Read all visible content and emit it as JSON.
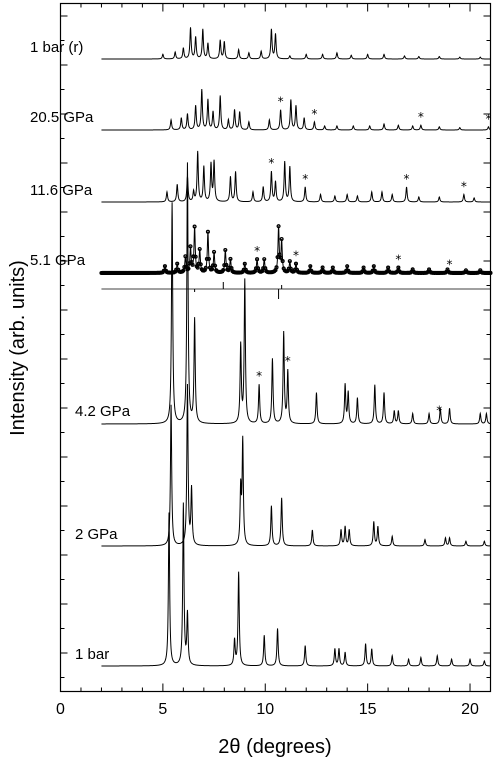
{
  "chart_data": {
    "type": "line",
    "xlabel": "2θ (degrees)",
    "ylabel": "Intensity (arb. units)",
    "xlim": [
      0,
      21
    ],
    "x_ticks": [
      "0",
      "5",
      "10",
      "15",
      "20"
    ],
    "x_minor_step": 1,
    "y_ticks_shown": false,
    "grid": false,
    "legend": "none",
    "pattern_x_range": [
      2,
      21
    ],
    "series": [
      {
        "name": "1 bar (r)",
        "peaks": [
          [
            5.0,
            0.15
          ],
          [
            5.6,
            0.22
          ],
          [
            6.0,
            0.35
          ],
          [
            6.35,
            1.0
          ],
          [
            6.6,
            0.7
          ],
          [
            6.95,
            0.95
          ],
          [
            7.2,
            0.5
          ],
          [
            7.8,
            0.6
          ],
          [
            8.0,
            0.55
          ],
          [
            8.7,
            0.3
          ],
          [
            9.2,
            0.2
          ],
          [
            9.8,
            0.25
          ],
          [
            10.3,
            0.95
          ],
          [
            10.5,
            0.8
          ],
          [
            11.2,
            0.1
          ],
          [
            12.0,
            0.15
          ],
          [
            12.8,
            0.15
          ],
          [
            13.5,
            0.2
          ],
          [
            14.2,
            0.12
          ],
          [
            15.0,
            0.15
          ],
          [
            15.8,
            0.15
          ],
          [
            16.8,
            0.1
          ],
          [
            17.5,
            0.08
          ],
          [
            18.5,
            0.08
          ],
          [
            19.5,
            0.06
          ],
          [
            20.5,
            0.06
          ]
        ]
      },
      {
        "name": "20.5 GPa",
        "peaks": [
          [
            5.4,
            0.25
          ],
          [
            5.9,
            0.3
          ],
          [
            6.2,
            0.4
          ],
          [
            6.6,
            0.6
          ],
          [
            6.9,
            1.0
          ],
          [
            7.2,
            0.75
          ],
          [
            7.45,
            0.45
          ],
          [
            7.8,
            0.85
          ],
          [
            8.2,
            0.25
          ],
          [
            8.5,
            0.5
          ],
          [
            8.75,
            0.45
          ],
          [
            9.2,
            0.2
          ],
          [
            10.2,
            0.25
          ],
          [
            10.75,
            0.5
          ],
          [
            11.25,
            0.75
          ],
          [
            11.5,
            0.6
          ],
          [
            11.9,
            0.3
          ],
          [
            12.4,
            0.2
          ],
          [
            12.9,
            0.1
          ],
          [
            13.5,
            0.1
          ],
          [
            14.3,
            0.1
          ],
          [
            15.1,
            0.1
          ],
          [
            15.8,
            0.15
          ],
          [
            16.5,
            0.12
          ],
          [
            17.2,
            0.1
          ],
          [
            17.6,
            0.12
          ],
          [
            18.5,
            0.08
          ],
          [
            19.5,
            0.06
          ],
          [
            20.9,
            0.08
          ]
        ]
      },
      {
        "name": "11.6 GPa",
        "peaks": [
          [
            5.2,
            0.2
          ],
          [
            5.7,
            0.35
          ],
          [
            6.2,
            0.5
          ],
          [
            6.5,
            0.2
          ],
          [
            6.7,
            1.0
          ],
          [
            7.0,
            0.7
          ],
          [
            7.35,
            0.75
          ],
          [
            7.5,
            0.8
          ],
          [
            8.3,
            0.5
          ],
          [
            8.55,
            0.6
          ],
          [
            9.4,
            0.2
          ],
          [
            9.9,
            0.3
          ],
          [
            10.3,
            0.6
          ],
          [
            10.5,
            0.4
          ],
          [
            10.95,
            0.8
          ],
          [
            11.2,
            0.7
          ],
          [
            11.95,
            0.3
          ],
          [
            12.7,
            0.15
          ],
          [
            13.4,
            0.12
          ],
          [
            14.0,
            0.15
          ],
          [
            14.5,
            0.12
          ],
          [
            15.2,
            0.2
          ],
          [
            15.7,
            0.2
          ],
          [
            16.2,
            0.15
          ],
          [
            16.9,
            0.3
          ],
          [
            17.5,
            0.1
          ],
          [
            18.5,
            0.1
          ],
          [
            19.7,
            0.15
          ],
          [
            20.2,
            0.08
          ]
        ]
      },
      {
        "name": "5.1 GPa",
        "peaks": [
          [
            5.1,
            0.15
          ],
          [
            5.7,
            0.2
          ],
          [
            6.1,
            0.35
          ],
          [
            6.35,
            0.55
          ],
          [
            6.55,
            1.0
          ],
          [
            6.8,
            0.5
          ],
          [
            7.2,
            0.9
          ],
          [
            7.5,
            0.45
          ],
          [
            8.05,
            0.5
          ],
          [
            8.3,
            0.3
          ],
          [
            9.0,
            0.2
          ],
          [
            9.6,
            0.3
          ],
          [
            9.95,
            0.3
          ],
          [
            10.65,
            1.0
          ],
          [
            10.8,
            0.7
          ],
          [
            11.2,
            0.25
          ],
          [
            11.5,
            0.2
          ],
          [
            12.2,
            0.15
          ],
          [
            12.8,
            0.12
          ],
          [
            13.3,
            0.12
          ],
          [
            14.0,
            0.15
          ],
          [
            14.8,
            0.12
          ],
          [
            15.3,
            0.15
          ],
          [
            16.0,
            0.12
          ],
          [
            16.5,
            0.12
          ],
          [
            17.2,
            0.08
          ],
          [
            18.0,
            0.08
          ],
          [
            18.9,
            0.08
          ],
          [
            19.8,
            0.06
          ],
          [
            20.5,
            0.06
          ]
        ]
      },
      {
        "name": "4.2 GPa",
        "peaks": [
          [
            5.45,
            0.85
          ],
          [
            6.2,
            1.0
          ],
          [
            6.55,
            0.4
          ],
          [
            8.8,
            0.3
          ],
          [
            9.0,
            0.55
          ],
          [
            9.7,
            0.15
          ],
          [
            10.35,
            0.25
          ],
          [
            10.9,
            0.35
          ],
          [
            11.1,
            0.2
          ],
          [
            12.5,
            0.12
          ],
          [
            13.9,
            0.15
          ],
          [
            14.05,
            0.12
          ],
          [
            14.5,
            0.1
          ],
          [
            15.35,
            0.15
          ],
          [
            15.8,
            0.12
          ],
          [
            16.3,
            0.05
          ],
          [
            16.5,
            0.05
          ],
          [
            17.2,
            0.04
          ],
          [
            18.0,
            0.04
          ],
          [
            18.55,
            0.06
          ],
          [
            19.0,
            0.06
          ],
          [
            20.5,
            0.04
          ],
          [
            20.8,
            0.04
          ]
        ]
      },
      {
        "name": "2 GPa",
        "peaks": [
          [
            5.4,
            0.88
          ],
          [
            6.2,
            1.0
          ],
          [
            6.4,
            0.35
          ],
          [
            8.8,
            0.35
          ],
          [
            8.9,
            0.65
          ],
          [
            10.3,
            0.25
          ],
          [
            10.8,
            0.3
          ],
          [
            12.3,
            0.1
          ],
          [
            13.7,
            0.1
          ],
          [
            13.9,
            0.12
          ],
          [
            14.1,
            0.1
          ],
          [
            15.3,
            0.15
          ],
          [
            15.5,
            0.12
          ],
          [
            16.2,
            0.06
          ],
          [
            17.8,
            0.04
          ],
          [
            18.8,
            0.05
          ],
          [
            19.0,
            0.05
          ],
          [
            19.8,
            0.03
          ],
          [
            20.7,
            0.03
          ]
        ]
      },
      {
        "name": "1 bar",
        "peaks": [
          [
            5.3,
            0.9
          ],
          [
            6.0,
            0.95
          ],
          [
            6.2,
            0.3
          ],
          [
            8.5,
            0.15
          ],
          [
            8.7,
            0.55
          ],
          [
            9.95,
            0.18
          ],
          [
            10.6,
            0.22
          ],
          [
            11.95,
            0.12
          ],
          [
            13.4,
            0.1
          ],
          [
            13.6,
            0.1
          ],
          [
            13.9,
            0.08
          ],
          [
            14.9,
            0.13
          ],
          [
            15.2,
            0.1
          ],
          [
            16.2,
            0.06
          ],
          [
            17.0,
            0.04
          ],
          [
            17.6,
            0.05
          ],
          [
            18.4,
            0.06
          ],
          [
            19.1,
            0.04
          ],
          [
            20.0,
            0.04
          ],
          [
            20.7,
            0.03
          ]
        ]
      }
    ],
    "asterisk_peaks": {
      "20.5 GPa": [
        10.75,
        12.4,
        17.6,
        20.9
      ],
      "11.6 GPa": [
        10.3,
        11.95,
        16.9,
        19.7
      ],
      "5.1 GPa": [
        9.6,
        11.5,
        16.5,
        19.0
      ],
      "4.2 GPa": [
        9.7,
        11.1,
        18.5
      ]
    }
  }
}
